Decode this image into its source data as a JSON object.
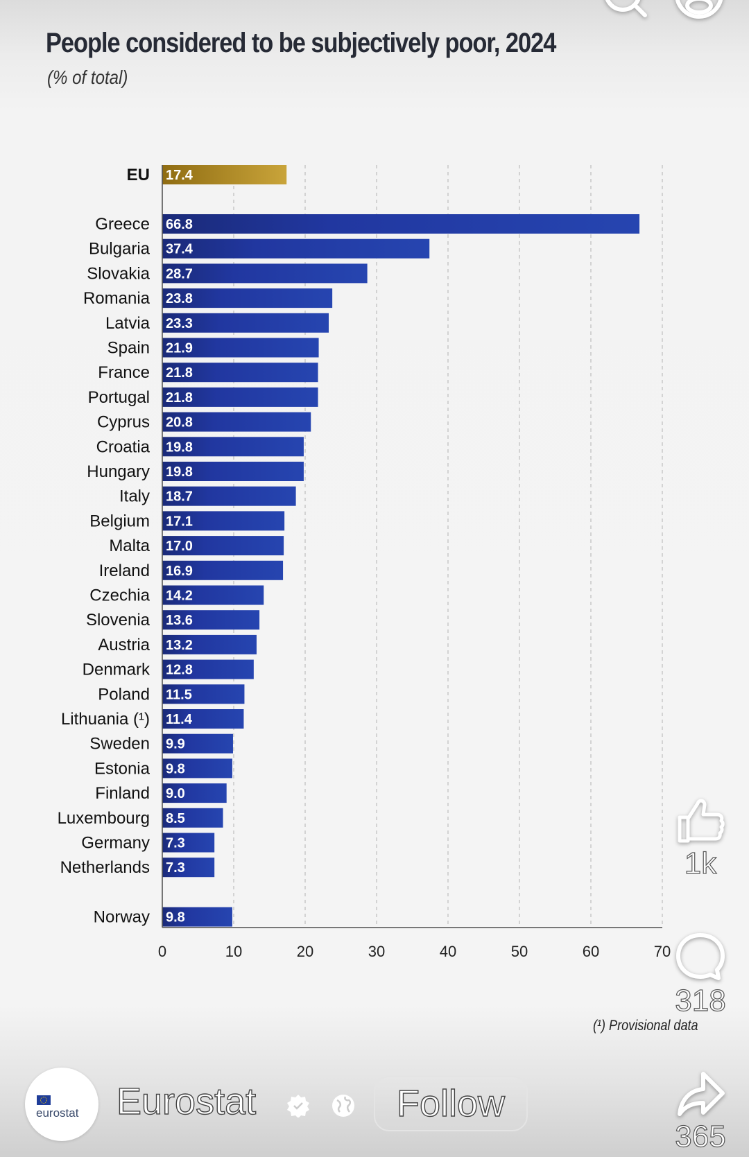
{
  "post": {
    "channel_name": "Eurostat",
    "avatar_text": "eurostat",
    "follow_label": "Follow",
    "likes_count": "1k",
    "comments_count": "318",
    "shares_count": "365",
    "icons": {
      "top": [
        "search-icon",
        "profile-icon"
      ],
      "side": [
        "thumbs-up-icon",
        "comment-icon",
        "share-icon"
      ],
      "profile": [
        "verified-badge-icon",
        "globe-icon"
      ]
    }
  },
  "chart_data": {
    "type": "bar",
    "orientation": "horizontal",
    "title": "People considered to be subjectively poor, 2024",
    "subtitle": "(% of total)",
    "xlabel": "",
    "ylabel": "",
    "xlim": [
      0,
      70
    ],
    "ticks": [
      0,
      10,
      20,
      30,
      40,
      50,
      60,
      70
    ],
    "grid": "vertical dashed",
    "footnote": "(¹) Provisional data",
    "colors": {
      "eu": "#b8962a",
      "countries": "#2440a8",
      "country_dark": "#1a2a78"
    },
    "categories": [
      "EU",
      "Greece",
      "Bulgaria",
      "Slovakia",
      "Romania",
      "Latvia",
      "Spain",
      "France",
      "Portugal",
      "Cyprus",
      "Croatia",
      "Hungary",
      "Italy",
      "Belgium",
      "Malta",
      "Ireland",
      "Czechia",
      "Slovenia",
      "Austria",
      "Denmark",
      "Poland",
      "Lithuania (¹)",
      "Sweden",
      "Estonia",
      "Finland",
      "Luxembourg",
      "Germany",
      "Netherlands",
      "Norway"
    ],
    "values": [
      17.4,
      66.8,
      37.4,
      28.7,
      23.8,
      23.3,
      21.9,
      21.8,
      21.8,
      20.8,
      19.8,
      19.8,
      18.7,
      17.1,
      17.0,
      16.9,
      14.2,
      13.6,
      13.2,
      12.8,
      11.5,
      11.4,
      9.9,
      9.8,
      9.0,
      8.5,
      7.3,
      7.3,
      9.8
    ],
    "value_labels": [
      "17.4",
      "66.8",
      "37.4",
      "28.7",
      "23.8",
      "23.3",
      "21.9",
      "21.8",
      "21.8",
      "20.8",
      "19.8",
      "19.8",
      "18.7",
      "17.1",
      "17.0",
      "16.9",
      "14.2",
      "13.6",
      "13.2",
      "12.8",
      "11.5",
      "11.4",
      "9.9",
      "9.8",
      "9.0",
      "8.5",
      "7.3",
      "7.3",
      "9.8"
    ],
    "groups": [
      "aggregate",
      "eu-member",
      "eu-member",
      "eu-member",
      "eu-member",
      "eu-member",
      "eu-member",
      "eu-member",
      "eu-member",
      "eu-member",
      "eu-member",
      "eu-member",
      "eu-member",
      "eu-member",
      "eu-member",
      "eu-member",
      "eu-member",
      "eu-member",
      "eu-member",
      "eu-member",
      "eu-member",
      "eu-member",
      "eu-member",
      "eu-member",
      "eu-member",
      "eu-member",
      "eu-member",
      "eu-member",
      "non-eu"
    ]
  }
}
